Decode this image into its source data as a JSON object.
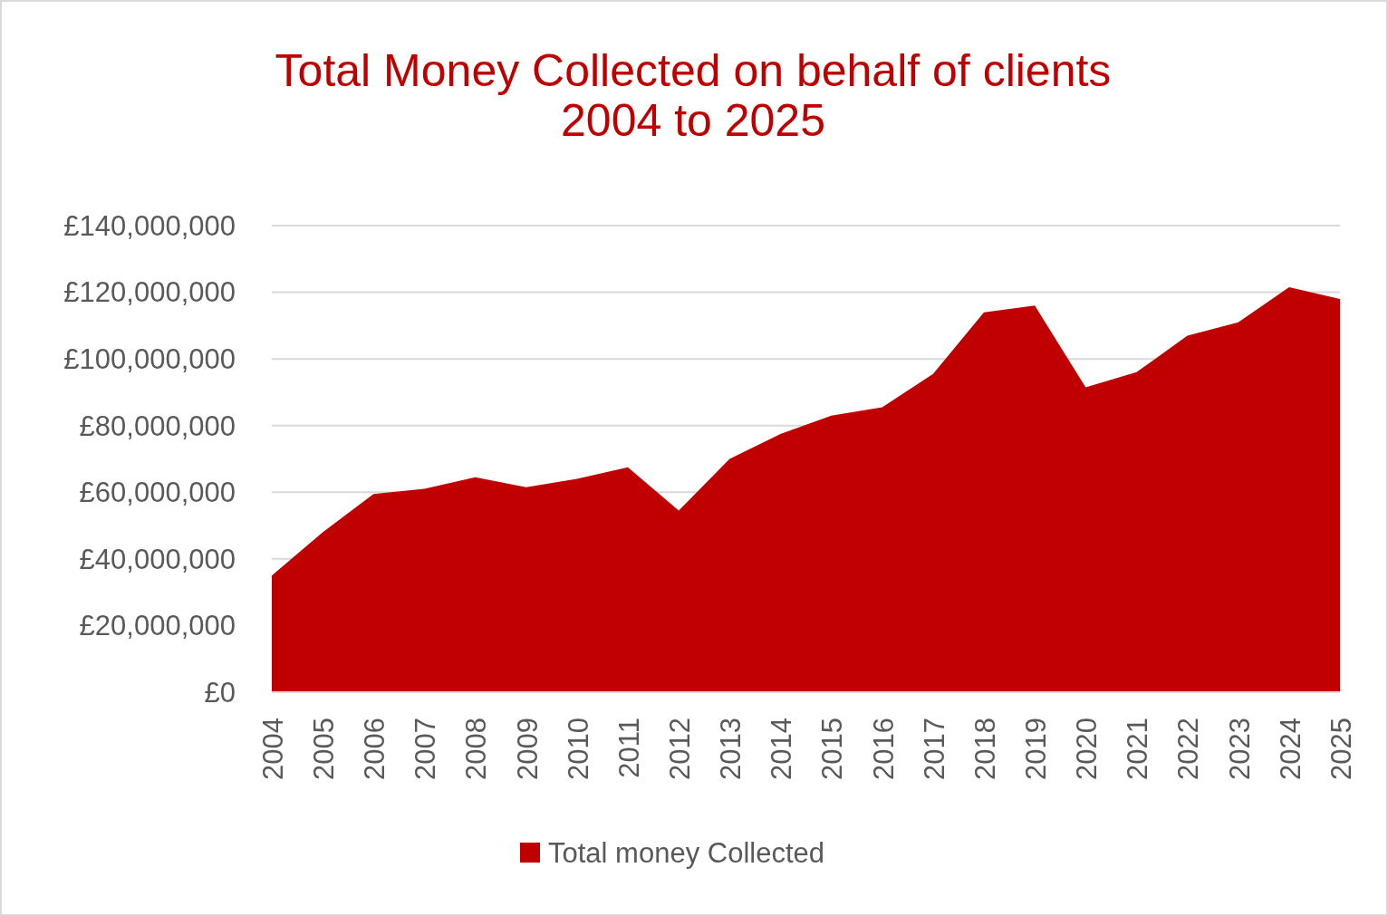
{
  "chart_data": {
    "type": "area",
    "title": "Total Money Collected on behalf of clients\n2004 to 2025",
    "categories": [
      "2004",
      "2005",
      "2006",
      "2007",
      "2008",
      "2009",
      "2010",
      "2011",
      "2012",
      "2013",
      "2014",
      "2015",
      "2016",
      "2017",
      "2018",
      "2019",
      "2020",
      "2021",
      "2022",
      "2023",
      "2024",
      "2025"
    ],
    "series": [
      {
        "name": "Total money Collected",
        "color": "#c00000",
        "values": [
          35000000,
          48000000,
          59500000,
          61000000,
          64500000,
          61500000,
          64000000,
          67500000,
          54500000,
          70000000,
          77500000,
          83000000,
          85500000,
          95500000,
          114000000,
          116000000,
          91500000,
          96000000,
          107000000,
          111000000,
          121500000,
          118000000
        ]
      }
    ],
    "ylim": [
      0,
      140000000
    ],
    "yticks": [
      {
        "value": 0,
        "label": "£0"
      },
      {
        "value": 20000000,
        "label": "£20,000,000"
      },
      {
        "value": 40000000,
        "label": "£40,000,000"
      },
      {
        "value": 60000000,
        "label": "£60,000,000"
      },
      {
        "value": 80000000,
        "label": "£80,000,000"
      },
      {
        "value": 100000000,
        "label": "£100,000,000"
      },
      {
        "value": 120000000,
        "label": "£120,000,000"
      },
      {
        "value": 140000000,
        "label": "£140,000,000"
      }
    ],
    "grid": "y",
    "legend": "bottom"
  }
}
